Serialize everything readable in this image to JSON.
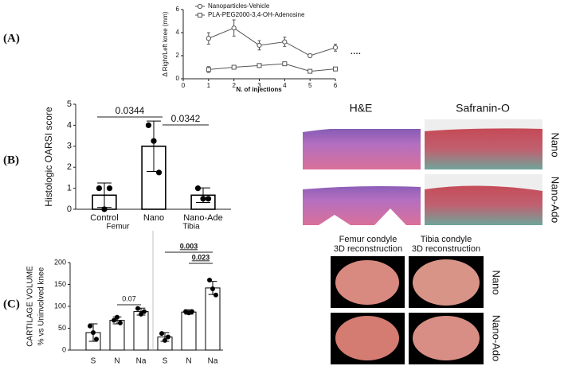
{
  "panel_labels": [
    "(A)",
    "(B)",
    "(C)"
  ],
  "chart_data": [
    {
      "type": "line",
      "x": [
        1,
        2,
        3,
        4,
        5,
        6
      ],
      "xlim": [
        0,
        6
      ],
      "xticks": [
        0,
        1,
        2,
        3,
        4,
        5,
        6
      ],
      "ylim": [
        0,
        6
      ],
      "yticks": [
        0,
        2,
        4,
        6
      ],
      "x_label": "N. of injections",
      "y_label": "Δ Right/Left knee (mm)",
      "series": [
        {
          "name": "Nanoparticles-Vehicle",
          "color": "#555555",
          "marker": "circle",
          "values": [
            3.5,
            4.4,
            2.9,
            3.2,
            2.0,
            2.7
          ],
          "errors": [
            0.5,
            0.7,
            0.4,
            0.4,
            0.15,
            0.3
          ]
        },
        {
          "name": "PLA-PEG2000-3,4-OH-Adenosine",
          "color": "#555555",
          "marker": "square",
          "values": [
            0.8,
            1.0,
            1.15,
            1.3,
            0.65,
            0.85
          ],
          "errors": [
            0.25,
            0.1,
            0.1,
            0.1,
            0.1,
            0.1
          ]
        }
      ],
      "annotations": [
        "····"
      ]
    },
    {
      "type": "bar",
      "categories": [
        "Control",
        "Nano",
        "Nano-Ade"
      ],
      "values": [
        0.67,
        3.0,
        0.67
      ],
      "errors": [
        0.58,
        1.2,
        0.35
      ],
      "points": [
        [
          1,
          0,
          1
        ],
        [
          4,
          3.25,
          1.75
        ],
        [
          1,
          0.5,
          0.5
        ]
      ],
      "color": "#ffffff",
      "edge_color": "#000000",
      "ylim": [
        0,
        5
      ],
      "yticks": [
        0,
        1,
        2,
        3,
        4,
        5
      ],
      "y_label": [
        "Histologic OARSI score"
      ],
      "annotations": [
        "0.0344",
        "0.0342"
      ]
    },
    {
      "type": "bar",
      "groups": [
        "Femur",
        "Tibia"
      ],
      "categories": [
        "S",
        "N",
        "Na",
        "S",
        "N",
        "Na"
      ],
      "values": [
        40,
        68,
        88,
        30,
        87,
        142
      ],
      "errors": [
        20,
        8,
        8,
        10,
        5,
        15
      ],
      "points": [
        [
          55,
          40,
          25
        ],
        [
          68,
          75,
          62
        ],
        [
          95,
          82,
          88
        ],
        [
          38,
          22,
          30
        ],
        [
          88,
          85,
          88
        ],
        [
          160,
          140,
          126
        ]
      ],
      "color": "#ffffff",
      "edge_color": "#000000",
      "ylim": [
        0,
        200
      ],
      "yticks": [
        0,
        50,
        100,
        150,
        200
      ],
      "y_label": [
        "CARTILAGE VOLUME",
        "% vs Uninvolved knee"
      ],
      "annotations": [
        "0.07",
        "0.003",
        "0.023"
      ]
    }
  ],
  "histology": {
    "columns": [
      "H&E",
      "Safranin-O"
    ],
    "rows": [
      "Nano",
      "Nano-Ado"
    ]
  },
  "reconstruction": {
    "columns": [
      [
        "Femur condyle",
        "3D reconstruction"
      ],
      [
        "Tibia condyle",
        "3D reconstruction"
      ]
    ],
    "rows": [
      "Nano",
      "Nano-Ado"
    ]
  }
}
